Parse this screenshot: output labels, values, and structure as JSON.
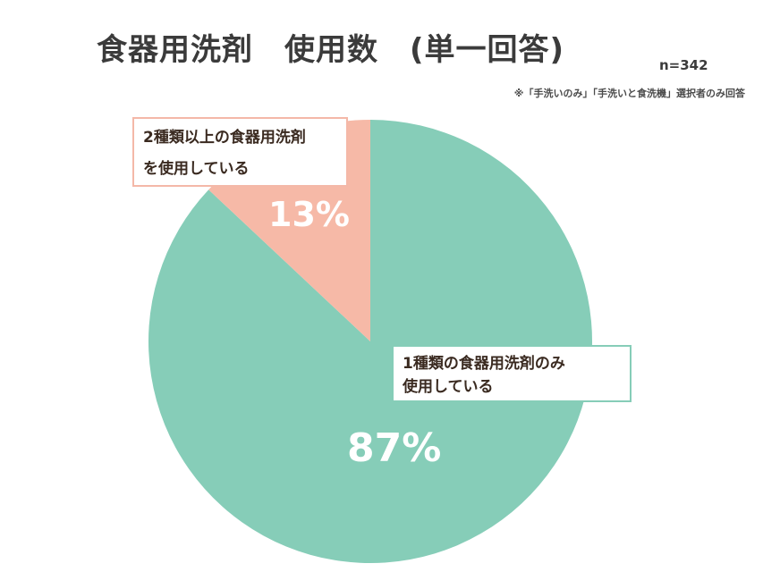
{
  "title": "食器用洗剤　使用数　(単一回答)",
  "sample_size": "n=342",
  "note": "※「手洗いのみ」「手洗いと食洗機」選択者のみ回答",
  "colors": {
    "major": "#86cdb8",
    "minor": "#f6b9a7",
    "minor_border": "#f4b8a8"
  },
  "chart_data": {
    "type": "pie",
    "title": "食器用洗剤　使用数　(単一回答)",
    "n": 342,
    "slices": [
      {
        "label_line1": "1種類の食器用洗剤のみ",
        "label_line2": "使用している",
        "value": 87,
        "percent_label": "87%"
      },
      {
        "label_line1": "2種類以上の食器用洗剤",
        "label_line2": "を使用している",
        "value": 13,
        "percent_label": "13%"
      }
    ]
  }
}
